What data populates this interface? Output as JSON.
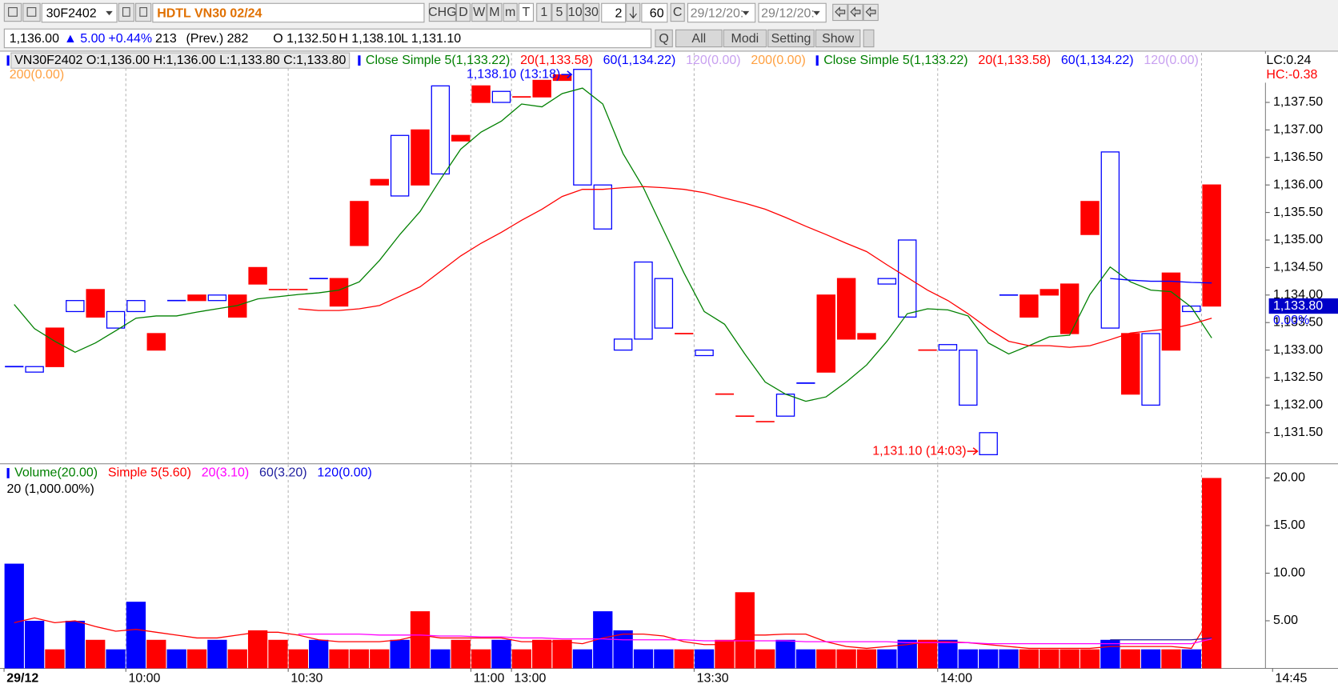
{
  "toolbar": {
    "symbol": "30F2402",
    "name": "HDTL VN30 02/24",
    "buttons": [
      "CHG",
      "D",
      "W",
      "M",
      "m",
      "T",
      "1",
      "5",
      "10",
      "30"
    ],
    "count": "2",
    "interval": "60",
    "c": "C",
    "date_from": "29/12/20:",
    "date_to": "29/12/20:"
  },
  "quote": {
    "items": [
      "1,136.00",
      "▲ 5.00",
      "+0.44%",
      "213",
      "(Prev.) 282",
      "O 1,132.50",
      "H 1,138.10",
      "L 1,131.10"
    ],
    "buttons": [
      "Q",
      "All",
      "Modi",
      "Setting",
      "Show"
    ]
  },
  "chart_data": [
    {
      "type": "candlestick",
      "legend": "VN30F2402 O:1,136.00 H:1,136.00 L:1,133.80 C:1,133.80",
      "up_color": "#0000ff",
      "down_color": "#ff0000",
      "open": [
        1132.7,
        1132.6,
        1133.4,
        1133.7,
        1134.1,
        1133.4,
        1133.7,
        1133.3,
        1133.9,
        1134.0,
        1133.9,
        1134.0,
        1134.5,
        1134.1,
        1134.1,
        1134.3,
        1134.3,
        1135.7,
        1136.1,
        1135.8,
        1137.0,
        1136.2,
        1136.9,
        1137.8,
        1137.5,
        1137.6,
        1137.9,
        1138.0,
        1136.0,
        1135.2,
        1133.0,
        1133.2,
        1133.4,
        1133.3,
        1132.9,
        1132.2,
        1131.8,
        1131.7,
        1131.8,
        1132.4,
        1134.0,
        1134.3,
        1133.3,
        1134.2,
        1133.6,
        1133.0,
        1133.0,
        1132.0,
        1131.1,
        1134.0,
        1134.0,
        1134.1,
        1134.2,
        1135.7,
        1133.4,
        1133.3,
        1132.0,
        1134.4,
        1133.7,
        1136.0
      ],
      "close": [
        1132.7,
        1132.7,
        1132.7,
        1133.9,
        1133.6,
        1133.7,
        1133.9,
        1133.0,
        1133.9,
        1133.9,
        1134.0,
        1133.6,
        1134.2,
        1134.1,
        1134.1,
        1134.3,
        1133.8,
        1134.9,
        1136.0,
        1136.9,
        1136.0,
        1137.8,
        1136.8,
        1137.5,
        1137.7,
        1137.6,
        1137.6,
        1137.9,
        1138.1,
        1136.0,
        1133.2,
        1134.6,
        1134.3,
        1133.3,
        1133.0,
        1132.2,
        1131.8,
        1131.7,
        1132.2,
        1132.4,
        1132.6,
        1133.2,
        1133.2,
        1134.3,
        1135.0,
        1133.0,
        1133.1,
        1133.0,
        1131.5,
        1134.0,
        1133.6,
        1134.0,
        1133.3,
        1135.1,
        1136.6,
        1132.2,
        1133.3,
        1133.0,
        1133.8,
        1133.8
      ],
      "colors": [
        "#0000ff",
        "#0000ff",
        "#ff0000",
        "#0000ff",
        "#ff0000",
        "#0000ff",
        "#0000ff",
        "#ff0000",
        "#0000ff",
        "#ff0000",
        "#0000ff",
        "#ff0000",
        "#ff0000",
        "#ff0000",
        "#ff0000",
        "#0000ff",
        "#ff0000",
        "#ff0000",
        "#ff0000",
        "#0000ff",
        "#ff0000",
        "#0000ff",
        "#ff0000",
        "#ff0000",
        "#0000ff",
        "#ff0000",
        "#ff0000",
        "#ff0000",
        "#0000ff",
        "#0000ff",
        "#0000ff",
        "#0000ff",
        "#0000ff",
        "#ff0000",
        "#0000ff",
        "#ff0000",
        "#ff0000",
        "#ff0000",
        "#0000ff",
        "#0000ff",
        "#ff0000",
        "#ff0000",
        "#ff0000",
        "#0000ff",
        "#0000ff",
        "#ff0000",
        "#0000ff",
        "#0000ff",
        "#0000ff",
        "#0000ff",
        "#ff0000",
        "#ff0000",
        "#ff0000",
        "#ff0000",
        "#0000ff",
        "#ff0000",
        "#0000ff",
        "#ff0000",
        "#0000ff",
        "#ff0000"
      ],
      "series": [
        {
          "name": "Close Simple 5(1,133.22)",
          "color": "#008000",
          "values": [
            1133.83,
            1133.39,
            1133.16,
            1132.96,
            1133.13,
            1133.35,
            1133.58,
            1133.62,
            1133.62,
            1133.69,
            1133.75,
            1133.81,
            1133.93,
            1133.97,
            1134.01,
            1134.04,
            1134.09,
            1134.24,
            1134.63,
            1135.1,
            1135.52,
            1136.1,
            1136.65,
            1136.96,
            1137.16,
            1137.47,
            1137.42,
            1137.66,
            1137.76,
            1137.47,
            1136.57,
            1135.95,
            1135.17,
            1134.4,
            1133.7,
            1133.47,
            1132.93,
            1132.42,
            1132.2,
            1132.07,
            1132.15,
            1132.42,
            1132.73,
            1133.16,
            1133.66,
            1133.75,
            1133.73,
            1133.62,
            1133.13,
            1132.93,
            1133.08,
            1133.24,
            1133.27,
            1134.01,
            1134.51,
            1134.24,
            1134.09,
            1134.06,
            1133.78,
            1133.22
          ]
        },
        {
          "name": "20(1,133.58)",
          "color": "#ff0000",
          "values": [
            null,
            null,
            null,
            null,
            null,
            null,
            null,
            null,
            null,
            null,
            null,
            null,
            null,
            null,
            1133.75,
            1133.72,
            1133.72,
            1133.75,
            1133.81,
            1133.98,
            1134.15,
            1134.43,
            1134.71,
            1134.94,
            1135.14,
            1135.36,
            1135.56,
            1135.79,
            1135.92,
            1135.92,
            1135.95,
            1135.97,
            1135.95,
            1135.92,
            1135.86,
            1135.76,
            1135.67,
            1135.56,
            1135.41,
            1135.25,
            1135.1,
            1134.94,
            1134.79,
            1134.55,
            1134.32,
            1134.09,
            1133.9,
            1133.66,
            1133.39,
            1133.16,
            1133.08,
            1133.08,
            1133.05,
            1133.08,
            1133.19,
            1133.31,
            1133.35,
            1133.39,
            1133.47,
            1133.58
          ]
        },
        {
          "name": "60(1,134.22)",
          "color": "#0000ff",
          "values": [
            null,
            null,
            null,
            null,
            null,
            null,
            null,
            null,
            null,
            null,
            null,
            null,
            null,
            null,
            null,
            null,
            null,
            null,
            null,
            null,
            null,
            null,
            null,
            null,
            null,
            null,
            null,
            null,
            null,
            null,
            null,
            null,
            null,
            null,
            null,
            null,
            null,
            null,
            null,
            null,
            null,
            null,
            null,
            null,
            null,
            null,
            null,
            null,
            null,
            null,
            null,
            null,
            null,
            null,
            1134.3,
            1134.27,
            1134.25,
            1134.25,
            1134.23,
            1134.22
          ]
        },
        {
          "name": "120(0.00)",
          "color": "#c8a0f0"
        },
        {
          "name": "200(0.00)",
          "color": "#ffa040"
        }
      ],
      "legend_repeat": [
        "Close Simple 5(1,133.22)",
        "20(1,133.58)",
        "60(1,134.22)",
        "120(0.00)",
        "200(0.00)"
      ],
      "lc": "LC:0.24",
      "hc": "HC:-0.38",
      "annotations": [
        {
          "text": "1,138.10 (13:18)",
          "x": 28,
          "value": 1138.1,
          "color": "#0000ff"
        },
        {
          "text": "1,131.10 (14:03)",
          "x": 48,
          "value": 1131.1,
          "color": "#ff0000"
        }
      ],
      "last_price": {
        "value": 1133.8,
        "label": "1,133.80"
      },
      "last_change": "0.00%",
      "xlim": [
        -0.2,
        62.15
      ],
      "xticks": [
        {
          "value": 0,
          "label": "29/12"
        },
        {
          "value": 6,
          "label": "10:00"
        },
        {
          "value": 14,
          "label": "10:30"
        },
        {
          "value": 23,
          "label": "11:00"
        },
        {
          "value": 25,
          "label": "13:00"
        },
        {
          "value": 34,
          "label": "13:30"
        },
        {
          "value": 46,
          "label": "14:00"
        },
        {
          "value": 62.5,
          "label": "14:45"
        }
      ],
      "xgrid": [
        6,
        14,
        23,
        25,
        34,
        46,
        59
      ],
      "ylim": [
        1130.95,
        1138.4
      ],
      "yticks": [
        {
          "value": 1131.5,
          "label": "1,131.50"
        },
        {
          "value": 1132,
          "label": "1,132.00"
        },
        {
          "value": 1132.5,
          "label": "1,132.50"
        },
        {
          "value": 1133,
          "label": "1,133.00"
        },
        {
          "value": 1133.5,
          "label": "1,133.50"
        },
        {
          "value": 1134,
          "label": "1,134.00"
        },
        {
          "value": 1134.5,
          "label": "1,134.50"
        },
        {
          "value": 1135,
          "label": "1,135.00"
        },
        {
          "value": 1135.5,
          "label": "1,135.50"
        },
        {
          "value": 1136,
          "label": "1,136.00"
        },
        {
          "value": 1136.5,
          "label": "1,136.50"
        },
        {
          "value": 1137,
          "label": "1,137.00"
        },
        {
          "value": 1137.5,
          "label": "1,137.50"
        }
      ]
    },
    {
      "type": "bar",
      "legend": "Volume(20.00)",
      "legend_color": "#008000",
      "subtitle": "20 (1,000.00%)",
      "values": [
        11,
        5,
        2,
        5,
        3,
        2,
        7,
        3,
        2,
        2,
        3,
        2,
        4,
        3,
        2,
        3,
        2,
        2,
        2,
        3,
        6,
        2,
        3,
        2,
        3,
        2,
        3,
        3,
        2,
        6,
        4,
        2,
        2,
        2,
        2,
        3,
        8,
        2,
        3,
        2,
        2,
        2,
        2,
        2,
        3,
        3,
        3,
        2,
        2,
        2,
        2,
        2,
        2,
        2,
        3,
        2,
        2,
        2,
        2,
        20
      ],
      "series": [
        {
          "name": "Simple 5(5.60)",
          "color": "#ff0000",
          "values": [
            4.8,
            5.3,
            4.8,
            5.0,
            4.4,
            3.9,
            4.1,
            3.8,
            3.5,
            3.2,
            3.2,
            3.5,
            3.8,
            3.8,
            3.5,
            3.0,
            2.8,
            2.8,
            2.8,
            3.0,
            3.5,
            3.2,
            3.2,
            3.2,
            3.2,
            2.8,
            2.8,
            2.8,
            2.6,
            3.2,
            3.6,
            3.6,
            3.4,
            2.8,
            2.5,
            2.5,
            3.5,
            3.5,
            3.6,
            3.6,
            2.8,
            2.3,
            2.1,
            2.3,
            2.5,
            2.8,
            2.8,
            2.7,
            2.5,
            2.3,
            2.1,
            2.1,
            2.1,
            2.1,
            2.3,
            2.3,
            2.3,
            2.3,
            2.1,
            5.6
          ]
        },
        {
          "name": "20(3.10)",
          "color": "#ff00ff",
          "values": [
            null,
            null,
            null,
            null,
            null,
            null,
            null,
            null,
            null,
            null,
            null,
            null,
            null,
            null,
            3.6,
            3.6,
            3.6,
            3.6,
            3.5,
            3.5,
            3.5,
            3.4,
            3.4,
            3.3,
            3.3,
            3.2,
            3.2,
            3.1,
            3.1,
            3.1,
            3.0,
            3.0,
            3.0,
            3.0,
            2.9,
            2.9,
            2.9,
            2.9,
            2.9,
            2.8,
            2.8,
            2.8,
            2.8,
            2.8,
            2.7,
            2.7,
            2.7,
            2.7,
            2.6,
            2.6,
            2.6,
            2.6,
            2.6,
            2.6,
            2.6,
            2.6,
            2.6,
            2.6,
            2.6,
            3.1
          ]
        },
        {
          "name": "60(3.20)",
          "color": "#2020a0",
          "values": [
            null,
            null,
            null,
            null,
            null,
            null,
            null,
            null,
            null,
            null,
            null,
            null,
            null,
            null,
            null,
            null,
            null,
            null,
            null,
            null,
            null,
            null,
            null,
            null,
            null,
            null,
            null,
            null,
            null,
            null,
            null,
            null,
            null,
            null,
            null,
            null,
            null,
            null,
            null,
            null,
            null,
            null,
            null,
            null,
            null,
            null,
            null,
            null,
            null,
            null,
            null,
            null,
            null,
            null,
            3.0,
            3.0,
            3.0,
            3.0,
            3.0,
            3.2
          ]
        },
        {
          "name": "120(0.00)",
          "color": "#0000ff"
        }
      ],
      "ylim": [
        0,
        21.4
      ],
      "yticks": [
        {
          "value": 5,
          "label": "5.00"
        },
        {
          "value": 10,
          "label": "10.00"
        },
        {
          "value": 15,
          "label": "15.00"
        },
        {
          "value": 20,
          "label": "20.00"
        }
      ]
    }
  ]
}
